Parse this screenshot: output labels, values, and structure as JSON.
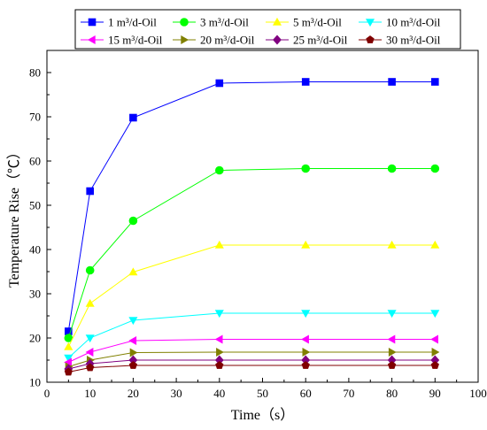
{
  "chart_data": {
    "type": "line",
    "xlabel": "Time（s）",
    "ylabel": "Temperature Rise（℃）",
    "xlim": [
      0,
      100
    ],
    "ylim": [
      10,
      85
    ],
    "xticks": [
      0,
      10,
      20,
      30,
      40,
      50,
      60,
      70,
      80,
      90,
      100
    ],
    "yticks": [
      10,
      20,
      30,
      40,
      50,
      60,
      70,
      80
    ],
    "x": [
      5,
      10,
      20,
      40,
      60,
      80,
      90
    ],
    "grid": false,
    "legend_position": "top",
    "series": [
      {
        "name": "1 m³/d-Oil",
        "marker": "square",
        "color": "#0000FF",
        "values": [
          21.5,
          53.2,
          69.8,
          77.6,
          77.9,
          77.9,
          77.9
        ]
      },
      {
        "name": "3 m³/d-Oil",
        "marker": "circle",
        "color": "#00FF00",
        "values": [
          20.0,
          35.3,
          46.5,
          57.9,
          58.3,
          58.3,
          58.3
        ]
      },
      {
        "name": "5 m³/d-Oil",
        "marker": "triangle-up",
        "color": "#FFFF00",
        "values": [
          18.0,
          27.8,
          34.9,
          41.0,
          41.0,
          41.0,
          41.0
        ]
      },
      {
        "name": "10 m³/d-Oil",
        "marker": "triangle-down",
        "color": "#00FFFF",
        "values": [
          15.5,
          20.0,
          24.0,
          25.6,
          25.6,
          25.6,
          25.6
        ]
      },
      {
        "name": "15 m³/d-Oil",
        "marker": "triangle-left",
        "color": "#FF00FF",
        "values": [
          14.5,
          16.8,
          19.4,
          19.7,
          19.7,
          19.7,
          19.7
        ]
      },
      {
        "name": "20 m³/d-Oil",
        "marker": "triangle-right",
        "color": "#808000",
        "values": [
          13.5,
          15.0,
          16.7,
          16.8,
          16.8,
          16.8,
          16.8
        ]
      },
      {
        "name": "25 m³/d-Oil",
        "marker": "diamond",
        "color": "#800080",
        "values": [
          13.0,
          14.2,
          15.0,
          15.0,
          15.0,
          15.0,
          15.0
        ]
      },
      {
        "name": "30 m³/d-Oil",
        "marker": "pentagon",
        "color": "#800000",
        "values": [
          12.3,
          13.3,
          13.8,
          13.8,
          13.8,
          13.8,
          13.8
        ]
      }
    ]
  }
}
